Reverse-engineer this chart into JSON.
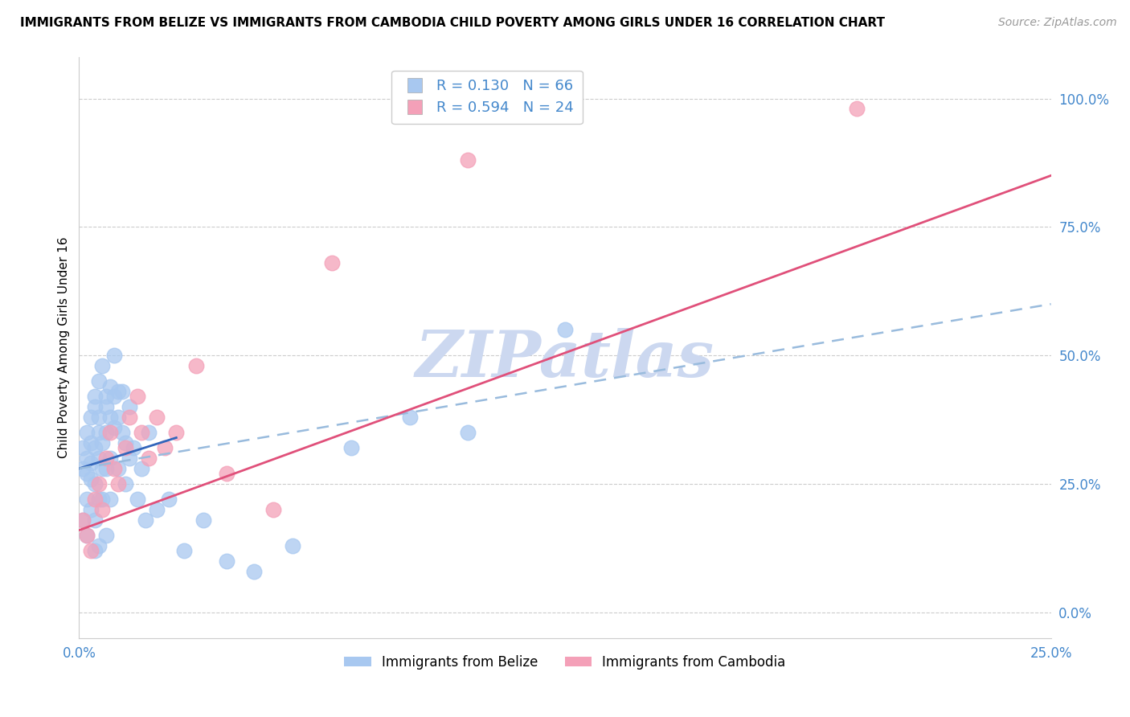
{
  "title": "IMMIGRANTS FROM BELIZE VS IMMIGRANTS FROM CAMBODIA CHILD POVERTY AMONG GIRLS UNDER 16 CORRELATION CHART",
  "source": "Source: ZipAtlas.com",
  "ylabel": "Child Poverty Among Girls Under 16",
  "belize_R": 0.13,
  "belize_N": 66,
  "cambodia_R": 0.594,
  "cambodia_N": 24,
  "xmin": 0.0,
  "xmax": 0.25,
  "ymin": -0.05,
  "ymax": 1.08,
  "right_yticks": [
    0.0,
    0.25,
    0.5,
    0.75,
    1.0
  ],
  "right_yticklabels": [
    "0.0%",
    "25.0%",
    "50.0%",
    "75.0%",
    "100.0%"
  ],
  "bottom_xticks": [
    0.0,
    0.05,
    0.1,
    0.15,
    0.2,
    0.25
  ],
  "bottom_xticklabels": [
    "0.0%",
    "",
    "",
    "",
    "",
    "25.0%"
  ],
  "belize_color": "#a8c8f0",
  "cambodia_color": "#f4a0b8",
  "belize_solid_line_color": "#3366bb",
  "belize_dashed_line_color": "#99bbdd",
  "cambodia_line_color": "#e0507a",
  "watermark_text": "ZIPatlas",
  "watermark_color": "#ccd8f0",
  "grid_color": "#cccccc",
  "axis_color": "#cccccc",
  "tick_color": "#4488cc",
  "title_fontsize": 11,
  "source_fontsize": 10,
  "belize_x": [
    0.001,
    0.001,
    0.001,
    0.002,
    0.002,
    0.002,
    0.002,
    0.002,
    0.003,
    0.003,
    0.003,
    0.003,
    0.003,
    0.004,
    0.004,
    0.004,
    0.004,
    0.004,
    0.004,
    0.005,
    0.005,
    0.005,
    0.005,
    0.005,
    0.005,
    0.006,
    0.006,
    0.006,
    0.006,
    0.007,
    0.007,
    0.007,
    0.007,
    0.007,
    0.008,
    0.008,
    0.008,
    0.008,
    0.009,
    0.009,
    0.009,
    0.01,
    0.01,
    0.01,
    0.011,
    0.011,
    0.012,
    0.012,
    0.013,
    0.013,
    0.014,
    0.015,
    0.016,
    0.017,
    0.018,
    0.02,
    0.023,
    0.027,
    0.032,
    0.038,
    0.045,
    0.055,
    0.07,
    0.085,
    0.1,
    0.125
  ],
  "belize_y": [
    0.28,
    0.32,
    0.18,
    0.3,
    0.27,
    0.22,
    0.35,
    0.15,
    0.29,
    0.26,
    0.33,
    0.2,
    0.38,
    0.4,
    0.32,
    0.25,
    0.18,
    0.42,
    0.12,
    0.35,
    0.3,
    0.22,
    0.45,
    0.13,
    0.38,
    0.48,
    0.33,
    0.28,
    0.22,
    0.4,
    0.35,
    0.42,
    0.28,
    0.15,
    0.44,
    0.3,
    0.38,
    0.22,
    0.5,
    0.42,
    0.36,
    0.38,
    0.43,
    0.28,
    0.35,
    0.43,
    0.33,
    0.25,
    0.3,
    0.4,
    0.32,
    0.22,
    0.28,
    0.18,
    0.35,
    0.2,
    0.22,
    0.12,
    0.18,
    0.1,
    0.08,
    0.13,
    0.32,
    0.38,
    0.35,
    0.55
  ],
  "cambodia_x": [
    0.001,
    0.002,
    0.003,
    0.004,
    0.005,
    0.006,
    0.007,
    0.008,
    0.009,
    0.01,
    0.012,
    0.013,
    0.015,
    0.016,
    0.018,
    0.02,
    0.022,
    0.025,
    0.03,
    0.038,
    0.05,
    0.065,
    0.1,
    0.2
  ],
  "cambodia_y": [
    0.18,
    0.15,
    0.12,
    0.22,
    0.25,
    0.2,
    0.3,
    0.35,
    0.28,
    0.25,
    0.32,
    0.38,
    0.42,
    0.35,
    0.3,
    0.38,
    0.32,
    0.35,
    0.48,
    0.27,
    0.2,
    0.68,
    0.88,
    0.98
  ],
  "belize_solid_trend_x": [
    0.0,
    0.025
  ],
  "belize_solid_trend_y": [
    0.28,
    0.34
  ],
  "belize_dashed_trend_x": [
    0.0,
    0.25
  ],
  "belize_dashed_trend_y": [
    0.28,
    0.6
  ],
  "cambodia_trend_x": [
    0.0,
    0.25
  ],
  "cambodia_trend_y": [
    0.16,
    0.85
  ]
}
